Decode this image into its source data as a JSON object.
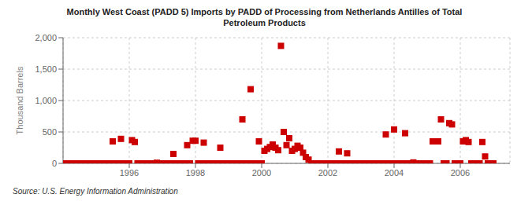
{
  "chart_data": {
    "type": "scatter",
    "title": "Monthly West Coast (PADD 5) Imports by PADD of Processing from Netherlands Antilles of Total\nPetroleum Products",
    "ylabel": "Thousand Barrels",
    "annotations": [
      "Source: U.S. Energy Information Administration"
    ],
    "color": "#cc0000",
    "marker": "square",
    "grid": true,
    "xlim": [
      1994.0,
      2007.5
    ],
    "xticks": [
      1996,
      1998,
      2000,
      2002,
      2004,
      2006
    ],
    "ylim": [
      0,
      2000
    ],
    "yticks": [
      0,
      500,
      {
        "value": 1000,
        "label": "1,000"
      },
      {
        "value": 1500,
        "label": "1,500"
      },
      {
        "value": 2000,
        "label": "2,000"
      }
    ],
    "x": [
      1994.083,
      1994.167,
      1994.25,
      1994.333,
      1994.417,
      1994.5,
      1994.583,
      1994.667,
      1994.75,
      1994.833,
      1994.917,
      1995.0,
      1995.083,
      1995.167,
      1995.25,
      1995.333,
      1995.417,
      1995.5,
      1995.583,
      1995.667,
      1995.75,
      1995.833,
      1995.917,
      1996.0,
      1996.083,
      1996.167,
      1996.25,
      1996.333,
      1996.417,
      1996.5,
      1996.583,
      1996.667,
      1996.75,
      1996.833,
      1996.917,
      1997.0,
      1997.083,
      1997.167,
      1997.25,
      1997.333,
      1997.417,
      1997.5,
      1997.583,
      1997.667,
      1997.75,
      1997.833,
      1997.917,
      1998.0,
      1998.083,
      1998.167,
      1998.25,
      1998.333,
      1998.417,
      1998.5,
      1998.583,
      1998.667,
      1998.75,
      1998.833,
      1998.917,
      1999.0,
      1999.083,
      1999.167,
      1999.25,
      1999.333,
      1999.417,
      1999.5,
      1999.583,
      1999.667,
      1999.75,
      1999.833,
      1999.917,
      2000.0,
      2000.083,
      2000.167,
      2000.25,
      2000.333,
      2000.417,
      2000.5,
      2000.583,
      2000.667,
      2000.75,
      2000.833,
      2000.917,
      2001.0,
      2001.083,
      2001.167,
      2001.25,
      2001.333,
      2001.417,
      2001.5,
      2001.583,
      2001.667,
      2001.75,
      2001.833,
      2001.917,
      2002.0,
      2002.083,
      2002.167,
      2002.25,
      2002.333,
      2002.417,
      2002.5,
      2002.583,
      2002.667,
      2002.75,
      2002.833,
      2002.917,
      2003.0,
      2003.083,
      2003.167,
      2003.25,
      2003.333,
      2003.417,
      2003.5,
      2003.583,
      2003.667,
      2003.75,
      2003.833,
      2003.917,
      2004.0,
      2004.083,
      2004.167,
      2004.25,
      2004.333,
      2004.417,
      2004.5,
      2004.583,
      2004.667,
      2004.75,
      2004.833,
      2004.917,
      2005.0,
      2005.083,
      2005.167,
      2005.25,
      2005.333,
      2005.417,
      2005.5,
      2005.583,
      2005.667,
      2005.75,
      2005.833,
      2005.917,
      2006.0,
      2006.083,
      2006.167,
      2006.25,
      2006.333,
      2006.417,
      2006.5,
      2006.583,
      2006.667,
      2006.75,
      2006.833,
      2006.917,
      2007.0
    ],
    "values": [
      0,
      0,
      0,
      0,
      0,
      0,
      0,
      0,
      0,
      0,
      0,
      0,
      0,
      0,
      0,
      0,
      0,
      350,
      0,
      0,
      390,
      0,
      0,
      0,
      370,
      340,
      0,
      0,
      0,
      0,
      0,
      0,
      0,
      10,
      0,
      0,
      0,
      0,
      0,
      150,
      0,
      0,
      0,
      0,
      290,
      0,
      360,
      360,
      0,
      0,
      330,
      0,
      0,
      0,
      0,
      0,
      250,
      0,
      0,
      0,
      0,
      0,
      0,
      0,
      700,
      0,
      0,
      1180,
      0,
      0,
      350,
      0,
      200,
      230,
      260,
      300,
      250,
      210,
      1870,
      500,
      290,
      400,
      200,
      230,
      280,
      250,
      170,
      100,
      60,
      0,
      0,
      0,
      0,
      0,
      0,
      0,
      0,
      0,
      0,
      190,
      0,
      0,
      160,
      0,
      0,
      0,
      0,
      0,
      0,
      0,
      0,
      0,
      0,
      0,
      0,
      0,
      460,
      0,
      0,
      540,
      0,
      0,
      0,
      480,
      0,
      0,
      15,
      0,
      0,
      0,
      0,
      0,
      0,
      350,
      350,
      350,
      700,
      0,
      0,
      640,
      620,
      0,
      0,
      0,
      350,
      370,
      340,
      0,
      0,
      0,
      0,
      340,
      110,
      0,
      0,
      0
    ]
  }
}
